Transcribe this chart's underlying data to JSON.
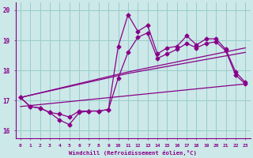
{
  "xlabel": "Windchill (Refroidissement éolien,°C)",
  "background_color": "#cce8e8",
  "grid_color": "#99cccc",
  "line_color": "#880088",
  "xlim": [
    -0.5,
    23.5
  ],
  "ylim": [
    15.75,
    20.25
  ],
  "yticks": [
    16,
    17,
    18,
    19,
    20
  ],
  "xticks": [
    0,
    1,
    2,
    3,
    4,
    5,
    6,
    7,
    8,
    9,
    10,
    11,
    12,
    13,
    14,
    15,
    16,
    17,
    18,
    19,
    20,
    21,
    22,
    23
  ],
  "series1_x": [
    0,
    1,
    2,
    3,
    4,
    5,
    6,
    7,
    8,
    9,
    10,
    11,
    12,
    13,
    14,
    15,
    16,
    17,
    18,
    19,
    20,
    21,
    22,
    23
  ],
  "series1_y": [
    17.1,
    16.8,
    16.75,
    16.6,
    16.35,
    16.2,
    16.6,
    16.65,
    16.65,
    16.7,
    18.8,
    19.85,
    19.3,
    19.5,
    18.55,
    18.75,
    18.8,
    19.15,
    18.85,
    19.05,
    19.05,
    18.7,
    17.95,
    17.6
  ],
  "series2_x": [
    0,
    1,
    2,
    3,
    4,
    5,
    6,
    7,
    8,
    9,
    10,
    11,
    12,
    13,
    14,
    15,
    16,
    17,
    18,
    19,
    20,
    21,
    22,
    23
  ],
  "series2_y": [
    17.1,
    16.8,
    16.75,
    16.6,
    16.55,
    16.45,
    16.65,
    16.65,
    16.65,
    16.7,
    17.75,
    18.6,
    19.1,
    19.25,
    18.4,
    18.55,
    18.7,
    18.9,
    18.75,
    18.9,
    18.95,
    18.65,
    17.85,
    17.55
  ],
  "series3_x": [
    0,
    11,
    23
  ],
  "series3_y": [
    17.1,
    17.9,
    18.6
  ],
  "series4_x": [
    0,
    11,
    23
  ],
  "series4_y": [
    17.1,
    17.95,
    18.75
  ],
  "series5_x": [
    0,
    23
  ],
  "series5_y": [
    16.8,
    17.55
  ]
}
